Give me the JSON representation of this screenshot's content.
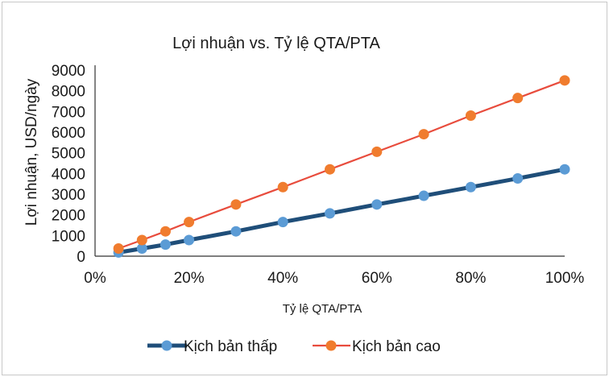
{
  "chart_data": {
    "type": "line",
    "title": "Lợi nhuận vs. Tỷ lệ QTA/PTA",
    "xlabel": "Tỷ lệ QTA/PTA",
    "ylabel": "Lợi nhuận, USD/ngày",
    "xlim": [
      0,
      100
    ],
    "ylim": [
      0,
      9000
    ],
    "x_ticks": [
      "0%",
      "20%",
      "40%",
      "60%",
      "80%",
      "100%"
    ],
    "y_ticks": [
      "0",
      "1000",
      "2000",
      "3000",
      "4000",
      "5000",
      "6000",
      "7000",
      "8000",
      "9000"
    ],
    "legend_position": "bottom",
    "grid": false,
    "series": [
      {
        "name": "Kịch bản thấp",
        "color": "#1f4e79",
        "marker_color": "#5b9bd5",
        "x": [
          5,
          10,
          15,
          20,
          30,
          40,
          50,
          60,
          70,
          80,
          90,
          100
        ],
        "values": [
          180,
          370,
          560,
          780,
          1200,
          1650,
          2070,
          2500,
          2920,
          3340,
          3760,
          4200
        ]
      },
      {
        "name": "Kịch bản cao",
        "color": "#e84c3d",
        "marker_color": "#f07c2e",
        "x": [
          5,
          10,
          15,
          20,
          30,
          40,
          50,
          60,
          70,
          80,
          90,
          100
        ],
        "values": [
          370,
          780,
          1200,
          1650,
          2500,
          3340,
          4200,
          5050,
          5900,
          6800,
          7650,
          8500
        ]
      }
    ]
  }
}
